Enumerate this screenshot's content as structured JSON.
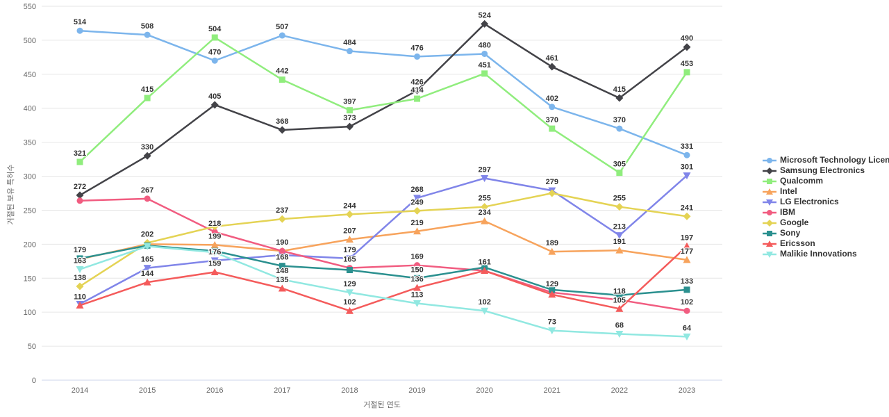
{
  "chart_data": {
    "type": "line",
    "title": "",
    "xlabel": "거절된 연도",
    "ylabel": "거절된 보유 특허수",
    "categories": [
      "2014",
      "2015",
      "2016",
      "2017",
      "2018",
      "2019",
      "2020",
      "2021",
      "2022",
      "2023"
    ],
    "ylim": [
      0,
      550
    ],
    "ytick_step": 50,
    "grid": "horizontal",
    "legend_position": "right",
    "axis_text_color": "#666666",
    "label_text_color": "#333333",
    "grid_color": "#e6e6e6",
    "axis_line_color": "#ccd6eb",
    "series": [
      {
        "name": "Microsoft Technology Licensing",
        "color": "#7cb5ec",
        "marker": "circle",
        "values": [
          514,
          508,
          470,
          507,
          484,
          476,
          480,
          402,
          370,
          331
        ],
        "label_visible": [
          true,
          true,
          true,
          true,
          true,
          true,
          true,
          true,
          true,
          true
        ]
      },
      {
        "name": "Samsung Electronics",
        "color": "#434348",
        "marker": "diamond",
        "values": [
          272,
          330,
          405,
          368,
          373,
          426,
          524,
          461,
          415,
          490
        ],
        "label_visible": [
          true,
          true,
          true,
          true,
          true,
          true,
          true,
          true,
          true,
          true
        ]
      },
      {
        "name": "Qualcomm",
        "color": "#90ed7d",
        "marker": "square",
        "values": [
          321,
          415,
          504,
          442,
          397,
          414,
          451,
          370,
          305,
          453
        ],
        "label_visible": [
          true,
          true,
          true,
          true,
          true,
          true,
          true,
          true,
          true,
          true
        ]
      },
      {
        "name": "Intel",
        "color": "#f7a35c",
        "marker": "triangle",
        "values": [
          178,
          200,
          199,
          190,
          207,
          219,
          234,
          189,
          191,
          177
        ],
        "label_visible": [
          false,
          false,
          true,
          false,
          true,
          true,
          true,
          true,
          true,
          true
        ]
      },
      {
        "name": "LG Electronics",
        "color": "#8085e9",
        "marker": "triangle-down",
        "values": [
          112,
          165,
          176,
          184,
          179,
          268,
          297,
          279,
          213,
          301
        ],
        "label_visible": [
          false,
          true,
          true,
          false,
          true,
          true,
          true,
          true,
          true,
          true
        ]
      },
      {
        "name": "IBM",
        "color": "#f15c80",
        "marker": "circle",
        "values": [
          264,
          267,
          218,
          190,
          165,
          169,
          161,
          129,
          118,
          102
        ],
        "label_visible": [
          false,
          true,
          true,
          true,
          true,
          true,
          true,
          true,
          true,
          true
        ]
      },
      {
        "name": "Google",
        "color": "#e4d354",
        "marker": "diamond",
        "values": [
          138,
          202,
          226,
          237,
          244,
          249,
          255,
          275,
          255,
          241
        ],
        "label_visible": [
          true,
          true,
          false,
          true,
          true,
          true,
          true,
          false,
          true,
          true
        ]
      },
      {
        "name": "Sony",
        "color": "#2b908f",
        "marker": "square",
        "values": [
          179,
          198,
          190,
          168,
          162,
          150,
          166,
          133,
          125,
          133
        ],
        "label_visible": [
          true,
          false,
          false,
          true,
          false,
          true,
          false,
          false,
          false,
          true
        ]
      },
      {
        "name": "Ericsson",
        "color": "#f45b5b",
        "marker": "triangle",
        "values": [
          110,
          144,
          159,
          135,
          102,
          136,
          161,
          126,
          105,
          197
        ],
        "label_visible": [
          true,
          true,
          true,
          true,
          true,
          true,
          false,
          false,
          true,
          true
        ]
      },
      {
        "name": "Malikie Innovations",
        "color": "#91e8e1",
        "marker": "triangle-down",
        "values": [
          163,
          197,
          188,
          148,
          129,
          113,
          102,
          73,
          68,
          64
        ],
        "label_visible": [
          true,
          false,
          false,
          true,
          true,
          true,
          true,
          true,
          true,
          true
        ]
      }
    ]
  }
}
